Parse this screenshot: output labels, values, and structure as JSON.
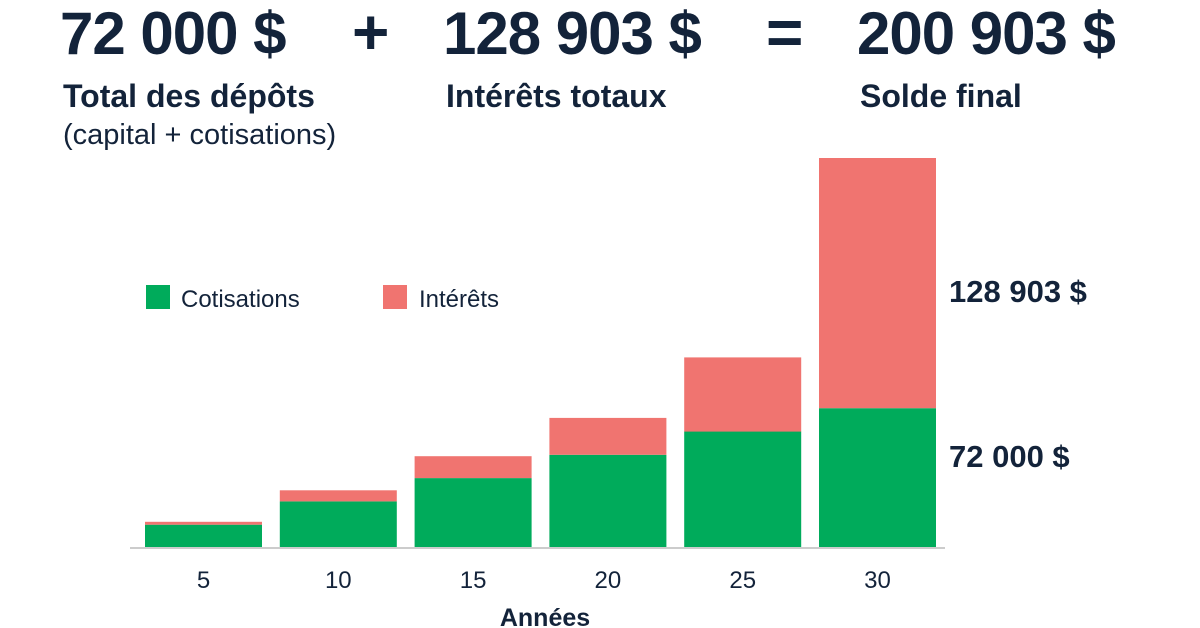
{
  "summary": {
    "deposits_value": "72 000 $",
    "deposits_label": "Total des dépôts",
    "deposits_sublabel": "(capital + cotisations)",
    "plus_sign": "+",
    "interest_value": "128 903 $",
    "interest_label": "Intérêts totaux",
    "equals_sign": "=",
    "final_value": "200 903 $",
    "final_label": "Solde final"
  },
  "colors": {
    "cotisations": "#00ab5b",
    "interets": "#f07470",
    "text": "#13233a",
    "axis": "#cccccc"
  },
  "chart_data": {
    "type": "bar",
    "stacked": true,
    "categories": [
      "5",
      "10",
      "15",
      "20",
      "25",
      "30"
    ],
    "series": [
      {
        "name": "Cotisations",
        "values": [
          12000,
          24000,
          36000,
          48000,
          60000,
          72000
        ]
      },
      {
        "name": "Intérêts",
        "values": [
          1500,
          5700,
          11300,
          19000,
          38200,
          128903
        ]
      }
    ],
    "xlabel": "Années",
    "ylabel": "",
    "title": "",
    "ylim": [
      0,
      200903
    ],
    "legend_position": "top-left",
    "grid": false,
    "annotations": [
      {
        "text": "128 903 $",
        "series": "Intérêts",
        "category": "30"
      },
      {
        "text": "72 000 $",
        "series": "Cotisations",
        "category": "30"
      }
    ]
  }
}
